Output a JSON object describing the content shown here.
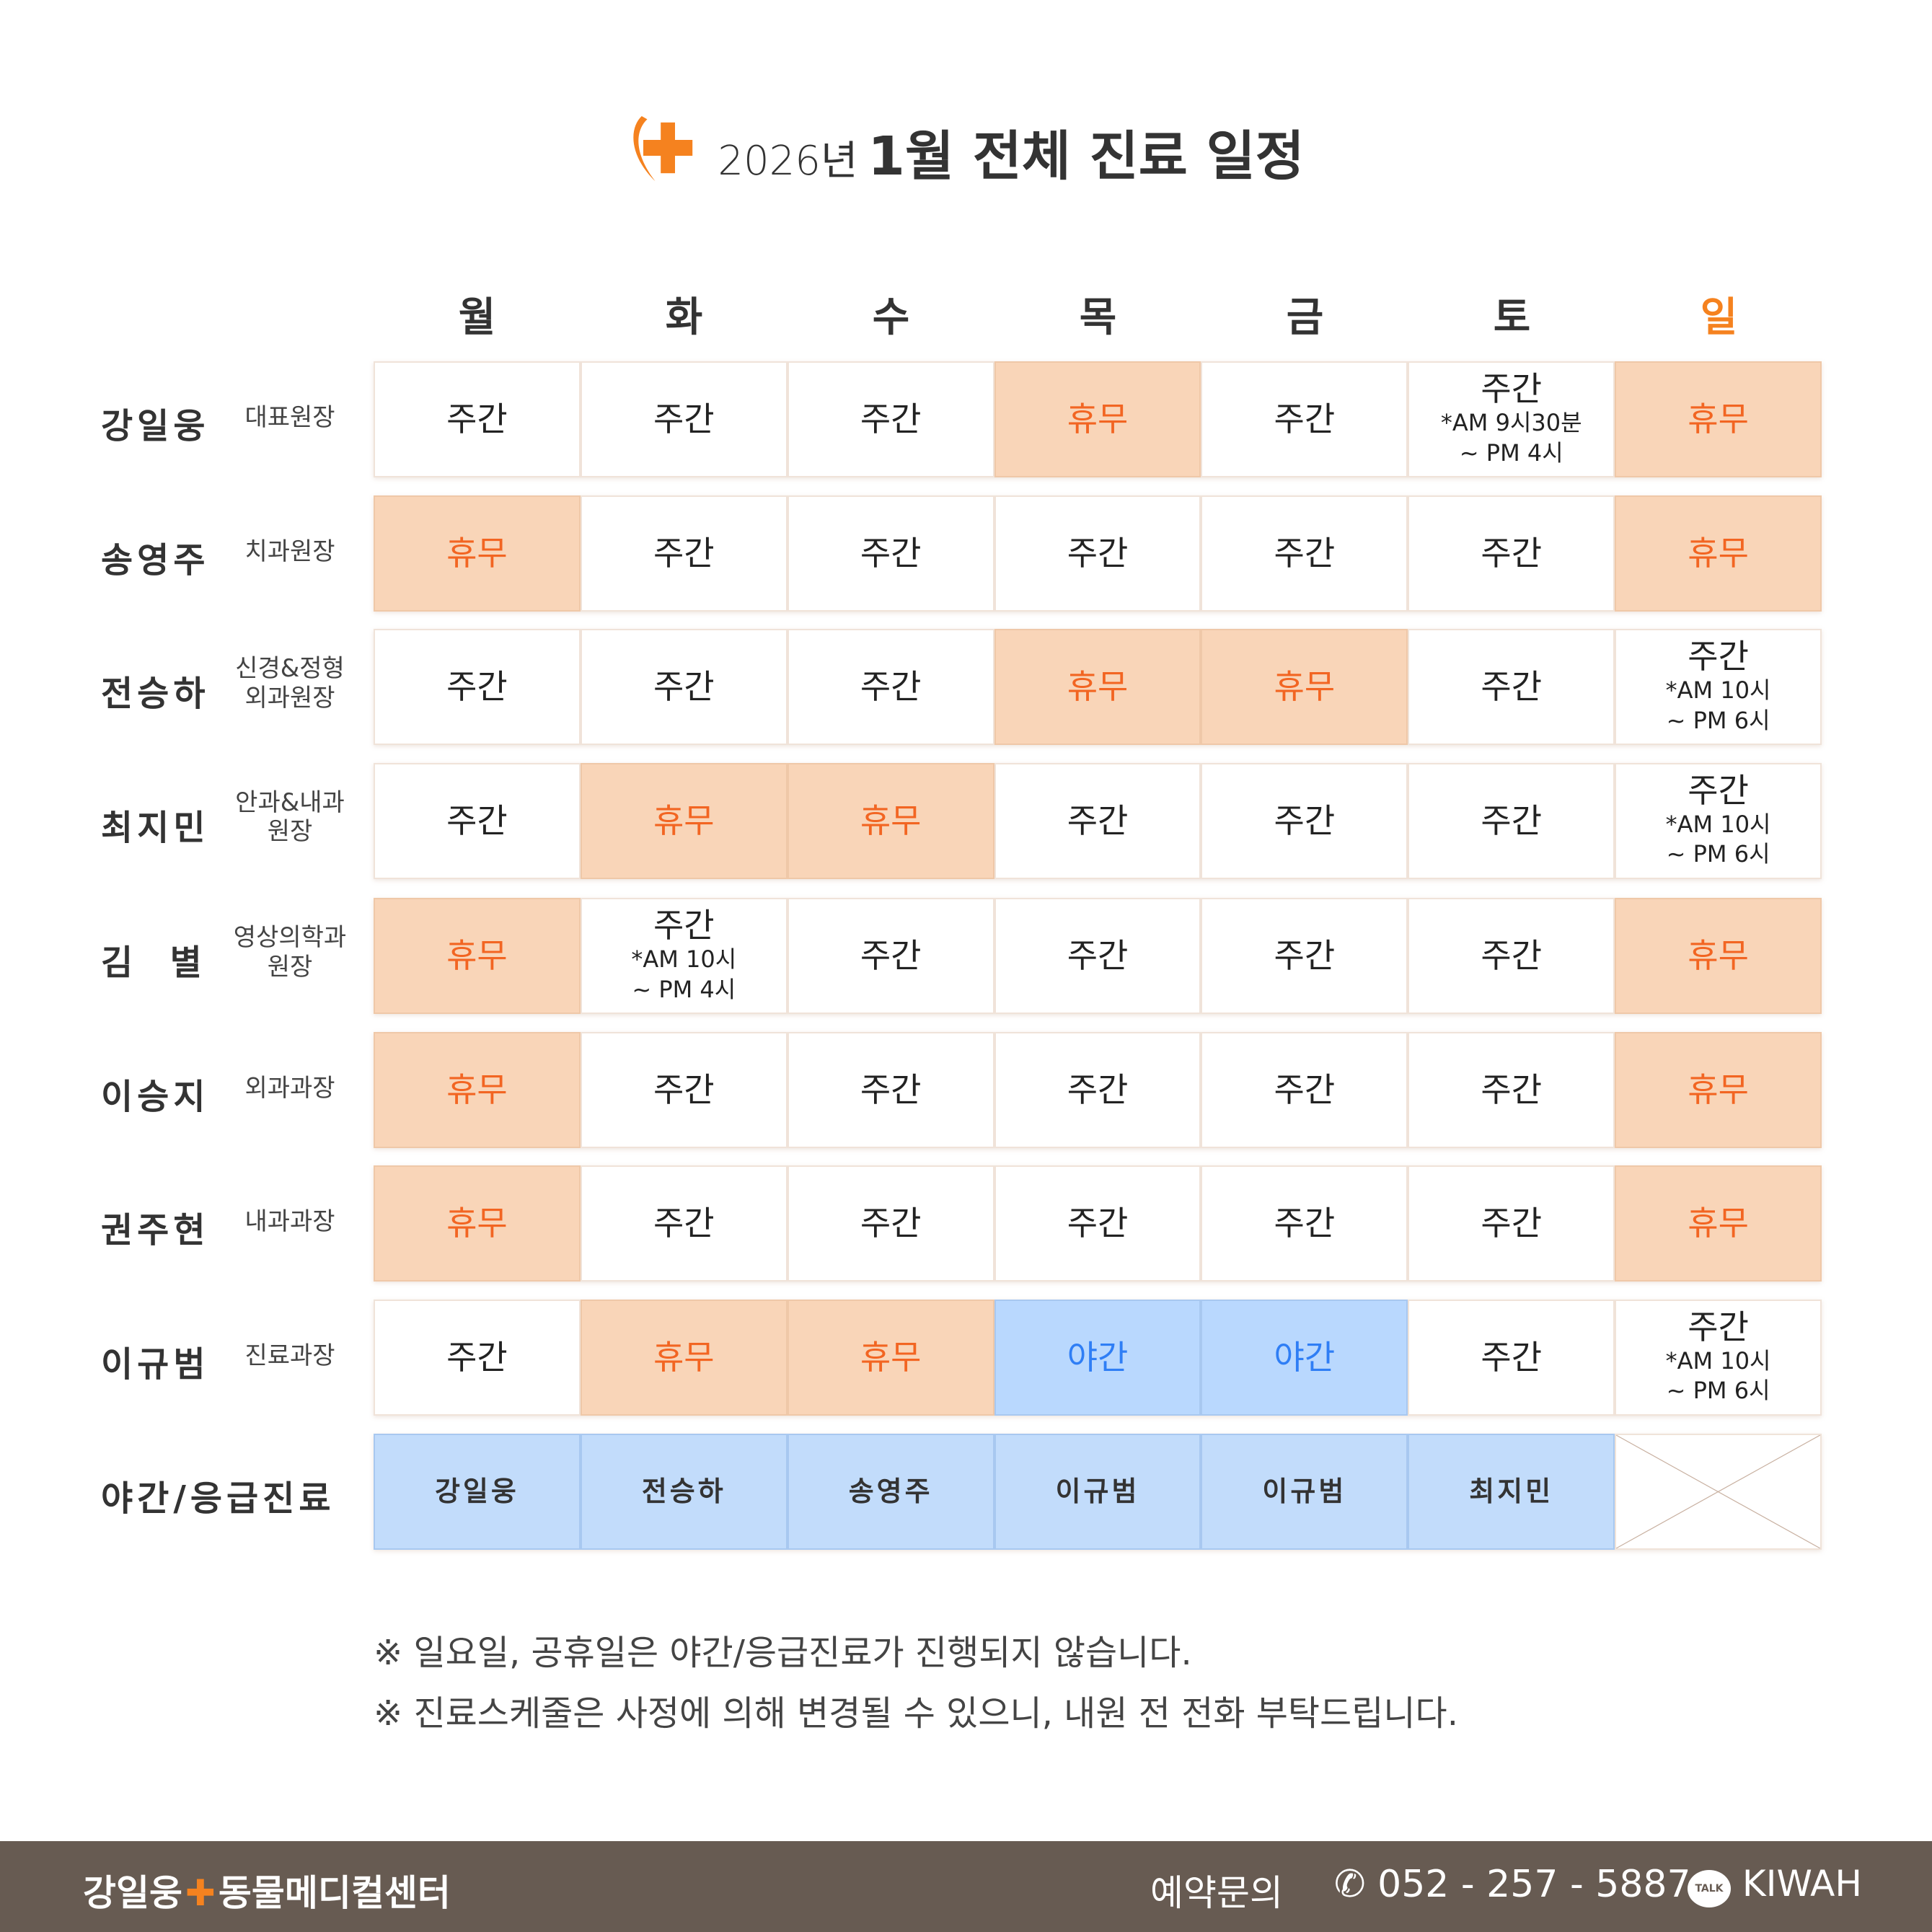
{
  "header": {
    "year": "2026년",
    "title": "1월 전체 진료 일정",
    "accent": "#f5821f"
  },
  "days": [
    "월",
    "화",
    "수",
    "목",
    "금",
    "토",
    "일"
  ],
  "colors": {
    "rest_bg": "#f9d5b8",
    "rest_text": "#f26522",
    "night_bg": "#b9d8fe",
    "night_text": "#2f7ef5",
    "sunday": "#f5821f"
  },
  "doctors": [
    {
      "name": "강일웅",
      "role": "대표원장",
      "cells": [
        {
          "t": "주간"
        },
        {
          "t": "주간"
        },
        {
          "t": "주간"
        },
        {
          "t": "휴무",
          "k": "rest"
        },
        {
          "t": "주간"
        },
        {
          "t": "주간",
          "n1": "*AM 9시30분",
          "n2": "~ PM 4시"
        },
        {
          "t": "휴무",
          "k": "rest"
        }
      ]
    },
    {
      "name": "송영주",
      "role": "치과원장",
      "cells": [
        {
          "t": "휴무",
          "k": "rest"
        },
        {
          "t": "주간"
        },
        {
          "t": "주간"
        },
        {
          "t": "주간"
        },
        {
          "t": "주간"
        },
        {
          "t": "주간"
        },
        {
          "t": "휴무",
          "k": "rest"
        }
      ]
    },
    {
      "name": "전승하",
      "role": "신경&정형 외과원장",
      "cells": [
        {
          "t": "주간"
        },
        {
          "t": "주간"
        },
        {
          "t": "주간"
        },
        {
          "t": "휴무",
          "k": "rest"
        },
        {
          "t": "휴무",
          "k": "rest"
        },
        {
          "t": "주간"
        },
        {
          "t": "주간",
          "n1": "*AM 10시",
          "n2": "~ PM 6시"
        }
      ]
    },
    {
      "name": "최지민",
      "role": "안과&내과 원장",
      "cells": [
        {
          "t": "주간"
        },
        {
          "t": "휴무",
          "k": "rest"
        },
        {
          "t": "휴무",
          "k": "rest"
        },
        {
          "t": "주간"
        },
        {
          "t": "주간"
        },
        {
          "t": "주간"
        },
        {
          "t": "주간",
          "n1": "*AM 10시",
          "n2": "~ PM 6시"
        }
      ]
    },
    {
      "name": "김  별",
      "role": "영상의학과 원장",
      "cells": [
        {
          "t": "휴무",
          "k": "rest"
        },
        {
          "t": "주간",
          "n1": "*AM 10시",
          "n2": "~ PM 4시"
        },
        {
          "t": "주간"
        },
        {
          "t": "주간"
        },
        {
          "t": "주간"
        },
        {
          "t": "주간"
        },
        {
          "t": "휴무",
          "k": "rest"
        }
      ]
    },
    {
      "name": "이승지",
      "role": "외과과장",
      "cells": [
        {
          "t": "휴무",
          "k": "rest"
        },
        {
          "t": "주간"
        },
        {
          "t": "주간"
        },
        {
          "t": "주간"
        },
        {
          "t": "주간"
        },
        {
          "t": "주간"
        },
        {
          "t": "휴무",
          "k": "rest"
        }
      ]
    },
    {
      "name": "권주현",
      "role": "내과과장",
      "cells": [
        {
          "t": "휴무",
          "k": "rest"
        },
        {
          "t": "주간"
        },
        {
          "t": "주간"
        },
        {
          "t": "주간"
        },
        {
          "t": "주간"
        },
        {
          "t": "주간"
        },
        {
          "t": "휴무",
          "k": "rest"
        }
      ]
    },
    {
      "name": "이규범",
      "role": "진료과장",
      "cells": [
        {
          "t": "주간"
        },
        {
          "t": "휴무",
          "k": "rest"
        },
        {
          "t": "휴무",
          "k": "rest"
        },
        {
          "t": "야간",
          "k": "night"
        },
        {
          "t": "야간",
          "k": "night"
        },
        {
          "t": "주간"
        },
        {
          "t": "주간",
          "n1": "*AM 10시",
          "n2": "~ PM 6시"
        }
      ]
    }
  ],
  "night": {
    "label": "야간/응급진료",
    "cells": [
      "강일웅",
      "전승하",
      "송영주",
      "이규범",
      "이규범",
      "최지민"
    ]
  },
  "notes": [
    "※ 일요일, 공휴일은 야간/응급진료가 진행되지 않습니다.",
    "※ 진료스케줄은 사정에 의해 변경될 수 있으니, 내원 전 전화 부탁드립니다."
  ],
  "footer": {
    "brand_left": "강일웅",
    "brand_right": "동물메디컬센터",
    "inquiry": "예약문의",
    "phone": "052 - 257 - 5887",
    "phone_icon": "phone-icon",
    "talk_icon": "kakaotalk-icon",
    "talk_label": "TALK",
    "talk_id": "KIWAH"
  }
}
